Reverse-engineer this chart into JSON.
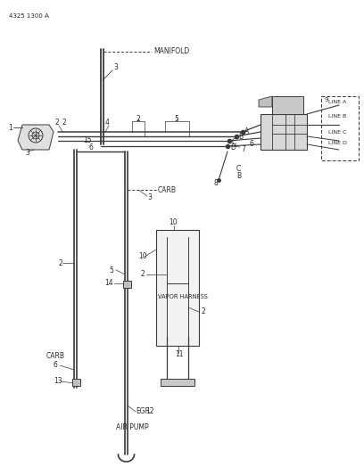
{
  "bg_color": "#ffffff",
  "line_color": "#3a3a3a",
  "text_color": "#2a2a2a",
  "fig_width": 4.08,
  "fig_height": 5.33,
  "dpi": 100,
  "part_code": "4325 1300 A",
  "labels": {
    "manifold": "MANIFOLD",
    "carb1": "CARB",
    "carb2": "CARB",
    "egr": "EGR",
    "air_pump": "AIR PUMP",
    "vapor_harness": "VAPOR HARNESS",
    "line_a": "LINE A",
    "line_b": "LINE B",
    "line_c": "LINE C",
    "line_d": "LINE D"
  }
}
